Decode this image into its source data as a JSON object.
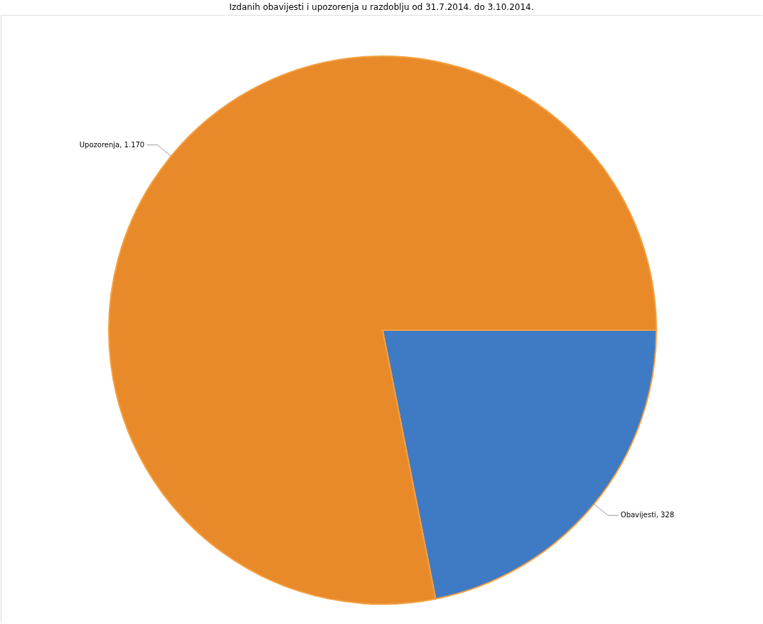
{
  "chart_data": {
    "type": "pie",
    "title": "Izdanih obavijesti i upozorenja u razdoblju od 31.7.2014. do 3.10.2014.",
    "categories": [
      "Obavijesti",
      "Upozorenja"
    ],
    "values": [
      328,
      1170
    ],
    "value_labels": [
      "328",
      "1.170"
    ],
    "colors": [
      "#3f7ac4",
      "#e88a2a"
    ],
    "legend": false
  }
}
